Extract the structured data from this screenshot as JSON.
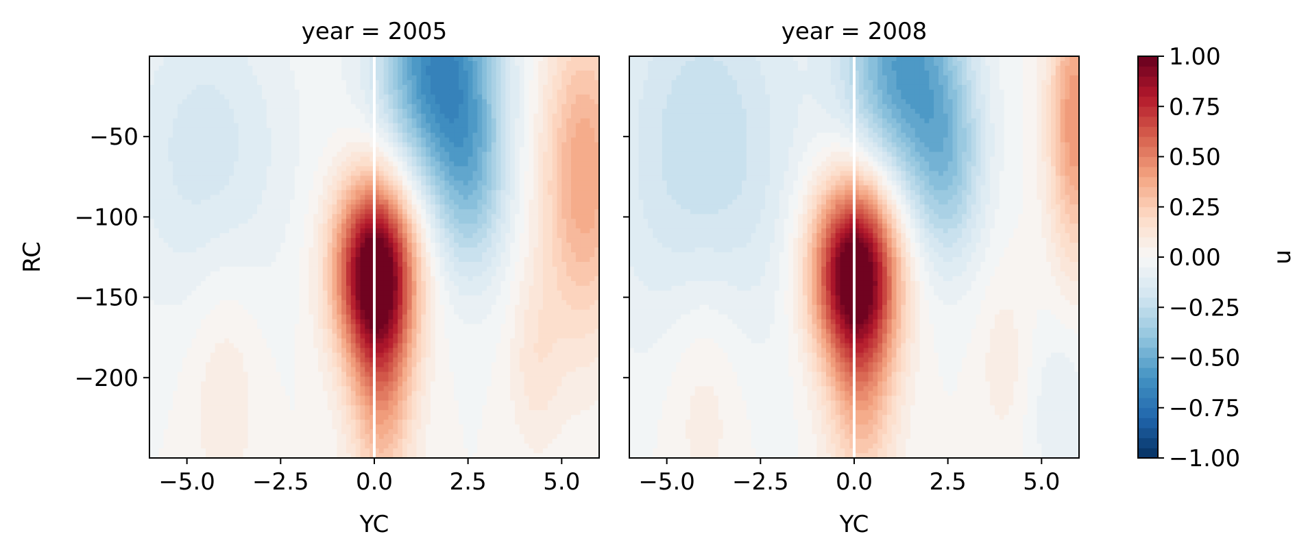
{
  "chart_data": {
    "type": "heatmap",
    "colormap": "RdBu_r",
    "colorbar": {
      "label": "u",
      "vmin": -1.0,
      "vmax": 1.0,
      "levels": 41,
      "ticks": [
        1.0,
        0.75,
        0.5,
        0.25,
        0.0,
        -0.25,
        -0.5,
        -0.75,
        -1.0
      ],
      "tick_labels": [
        "1.00",
        "0.75",
        "0.50",
        "0.25",
        "0.00",
        "−0.25",
        "−0.50",
        "−0.75",
        "−1.00"
      ]
    },
    "xlabel": "YC",
    "ylabel": "RC",
    "xlim": [
      -6.0,
      6.0
    ],
    "ylim": [
      -250,
      0
    ],
    "xticks": [
      -5.0,
      -2.5,
      0.0,
      2.5,
      5.0
    ],
    "xtick_labels": [
      "−5.0",
      "−2.5",
      "0.0",
      "2.5",
      "5.0"
    ],
    "yticks": [
      -50,
      -100,
      -150,
      -200
    ],
    "ytick_labels": [
      "−50",
      "−100",
      "−150",
      "−200"
    ],
    "panels": [
      {
        "title": "year = 2005",
        "features": [
          {
            "x": 0.0,
            "y": -132,
            "sx": 0.75,
            "sy": 40,
            "amp": 1.0
          },
          {
            "x": 0.2,
            "y": -200,
            "sx": 0.6,
            "sy": 55,
            "amp": 0.4
          },
          {
            "x": 1.7,
            "y": -5,
            "sx": 1.1,
            "sy": 55,
            "amp": -0.65
          },
          {
            "x": 2.6,
            "y": -80,
            "sx": 0.7,
            "sy": 45,
            "amp": -0.3
          },
          {
            "x": 5.6,
            "y": -75,
            "sx": 0.8,
            "sy": 70,
            "amp": 0.4
          },
          {
            "x": -4.0,
            "y": -200,
            "sx": 0.7,
            "sy": 60,
            "amp": 0.1
          },
          {
            "x": -4.5,
            "y": -60,
            "sx": 1.6,
            "sy": 70,
            "amp": -0.18
          },
          {
            "x": 4.3,
            "y": -190,
            "sx": 0.5,
            "sy": 40,
            "amp": 0.12
          }
        ]
      },
      {
        "title": "year = 2008",
        "features": [
          {
            "x": 0.0,
            "y": -132,
            "sx": 0.8,
            "sy": 40,
            "amp": 1.0
          },
          {
            "x": 0.2,
            "y": -200,
            "sx": 0.65,
            "sy": 55,
            "amp": 0.35
          },
          {
            "x": 1.3,
            "y": -5,
            "sx": 1.1,
            "sy": 55,
            "amp": -0.55
          },
          {
            "x": 2.5,
            "y": -70,
            "sx": 0.7,
            "sy": 45,
            "amp": -0.3
          },
          {
            "x": 5.9,
            "y": -40,
            "sx": 0.5,
            "sy": 60,
            "amp": 0.45
          },
          {
            "x": -4.0,
            "y": -200,
            "sx": 0.8,
            "sy": 60,
            "amp": 0.12
          },
          {
            "x": -4.0,
            "y": -60,
            "sx": 1.8,
            "sy": 90,
            "amp": -0.25
          },
          {
            "x": 4.0,
            "y": -190,
            "sx": 0.5,
            "sy": 40,
            "amp": 0.08
          },
          {
            "x": 5.5,
            "y": -220,
            "sx": 0.6,
            "sy": 40,
            "amp": -0.1
          }
        ]
      }
    ],
    "vertical_line_x": 0.0
  }
}
